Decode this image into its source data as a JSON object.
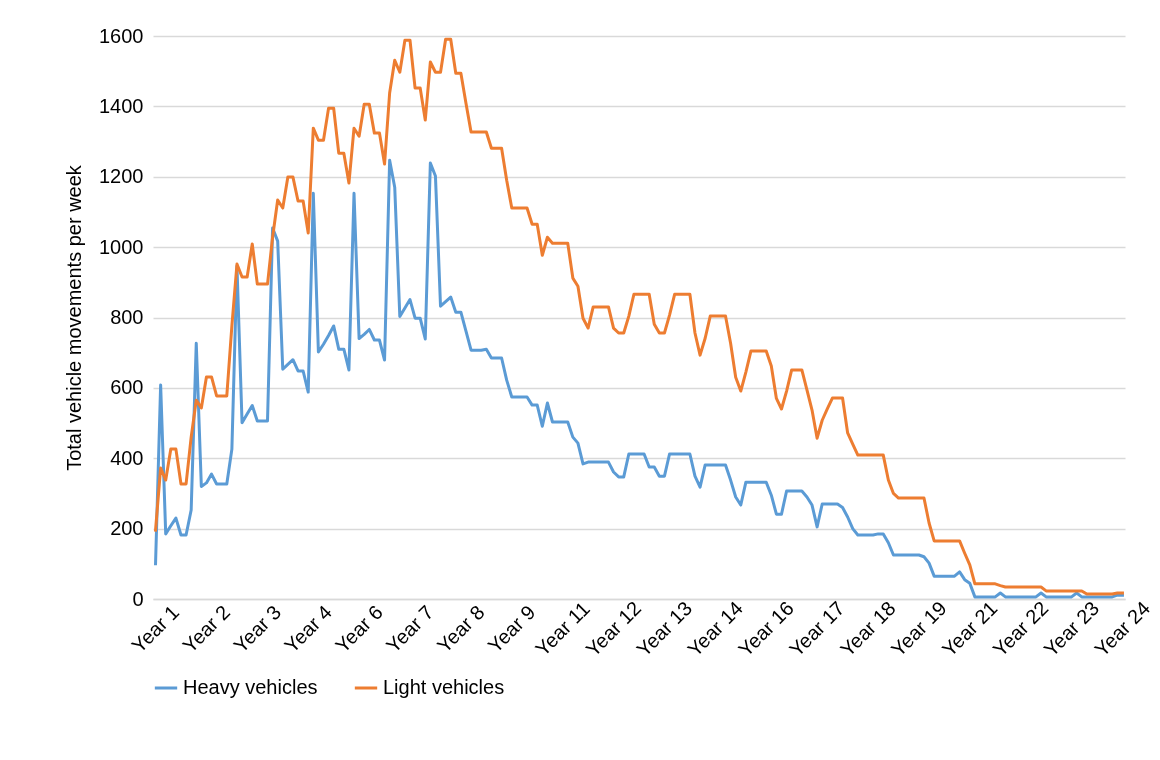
{
  "chart_data": {
    "type": "line",
    "ylabel": "Total vehicle movements per week",
    "categories": [
      "Year 1",
      null,
      null,
      null,
      null,
      null,
      null,
      null,
      null,
      null,
      "Year 2",
      null,
      null,
      null,
      null,
      null,
      null,
      null,
      null,
      null,
      "Year 3",
      null,
      null,
      null,
      null,
      null,
      null,
      null,
      null,
      null,
      "Year 4",
      null,
      null,
      null,
      null,
      null,
      null,
      null,
      null,
      null,
      "Year 6",
      null,
      null,
      null,
      null,
      null,
      null,
      null,
      null,
      null,
      "Year 7",
      null,
      null,
      null,
      null,
      null,
      null,
      null,
      null,
      null,
      "Year 8",
      null,
      null,
      null,
      null,
      null,
      null,
      null,
      null,
      null,
      "Year 9",
      null,
      null,
      null,
      null,
      null,
      null,
      null,
      null,
      null,
      "Year 11",
      null,
      null,
      null,
      null,
      null,
      null,
      null,
      null,
      null,
      "Year 12",
      null,
      null,
      null,
      null,
      null,
      null,
      null,
      null,
      null,
      "Year 13",
      null,
      null,
      null,
      null,
      null,
      null,
      null,
      null,
      null,
      "Year 14",
      null,
      null,
      null,
      null,
      null,
      null,
      null,
      null,
      null,
      "Year 16",
      null,
      null,
      null,
      null,
      null,
      null,
      null,
      null,
      null,
      "Year 17",
      null,
      null,
      null,
      null,
      null,
      null,
      null,
      null,
      null,
      "Year 18",
      null,
      null,
      null,
      null,
      null,
      null,
      null,
      null,
      null,
      "Year 19",
      null,
      null,
      null,
      null,
      null,
      null,
      null,
      null,
      null,
      "Year 21",
      null,
      null,
      null,
      null,
      null,
      null,
      null,
      null,
      null,
      "Year 22",
      null,
      null,
      null,
      null,
      null,
      null,
      null,
      null,
      null,
      "Year 23",
      null,
      null,
      null,
      null,
      null,
      null,
      null,
      null,
      null,
      "Year 24"
    ],
    "ylim": [
      0,
      1600
    ],
    "yticks": [
      0,
      200,
      400,
      600,
      800,
      1000,
      1200,
      1400,
      1600
    ],
    "grid": "y",
    "legend": "bottom",
    "series": [
      {
        "name": "Heavy vehicles",
        "color": "#5b9bd5",
        "values": [
          100,
          608,
          185,
          208,
          230,
          182,
          182,
          253,
          727,
          320,
          330,
          355,
          327,
          327,
          327,
          426,
          946,
          501,
          526,
          550,
          506,
          506,
          506,
          1054,
          1017,
          653,
          667,
          680,
          648,
          648,
          588,
          1153,
          702,
          724,
          749,
          776,
          710,
          710,
          651,
          1153,
          740,
          752,
          766,
          736,
          736,
          679,
          1247,
          1170,
          803,
          827,
          851,
          798,
          798,
          739,
          1239,
          1202,
          832,
          845,
          858,
          815,
          815,
          761,
          707,
          707,
          707,
          710,
          685,
          685,
          685,
          622,
          574,
          574,
          574,
          574,
          551,
          551,
          491,
          557,
          503,
          503,
          503,
          503,
          460,
          443,
          384,
          389,
          389,
          389,
          389,
          389,
          361,
          347,
          347,
          412,
          412,
          412,
          412,
          375,
          375,
          349,
          349,
          412,
          412,
          412,
          412,
          412,
          349,
          318,
          381,
          381,
          381,
          381,
          381,
          338,
          290,
          267,
          332,
          332,
          332,
          332,
          332,
          295,
          241,
          241,
          307,
          307,
          307,
          307,
          290,
          267,
          205,
          270,
          270,
          270,
          270,
          260,
          233,
          200,
          182,
          182,
          182,
          182,
          185,
          185,
          160,
          125,
          125,
          125,
          125,
          125,
          125,
          120,
          102,
          65,
          65,
          65,
          65,
          65,
          77,
          55,
          45,
          6,
          6,
          6,
          6,
          6,
          17,
          6,
          6,
          6,
          6,
          6,
          6,
          6,
          17,
          6,
          6,
          6,
          6,
          6,
          6,
          17,
          6,
          6,
          6,
          6,
          6,
          6,
          6,
          11,
          11
        ]
      },
      {
        "name": "Light vehicles",
        "color": "#ed7d31",
        "values": [
          196,
          372,
          338,
          426,
          426,
          327,
          327,
          460,
          565,
          543,
          631,
          631,
          577,
          577,
          577,
          776,
          952,
          915,
          915,
          1009,
          895,
          895,
          895,
          1028,
          1134,
          1111,
          1199,
          1199,
          1131,
          1131,
          1040,
          1338,
          1304,
          1304,
          1395,
          1395,
          1267,
          1267,
          1182,
          1338,
          1315,
          1406,
          1406,
          1324,
          1324,
          1236,
          1438,
          1531,
          1497,
          1588,
          1588,
          1452,
          1452,
          1361,
          1526,
          1497,
          1497,
          1591,
          1591,
          1494,
          1494,
          1409,
          1327,
          1327,
          1327,
          1327,
          1281,
          1281,
          1281,
          1190,
          1111,
          1111,
          1111,
          1111,
          1065,
          1065,
          977,
          1028,
          1011,
          1011,
          1011,
          1011,
          912,
          889,
          798,
          770,
          830,
          830,
          830,
          830,
          770,
          756,
          756,
          804,
          866,
          866,
          866,
          866,
          781,
          756,
          756,
          807,
          866,
          866,
          866,
          866,
          756,
          693,
          741,
          804,
          804,
          804,
          804,
          727,
          630,
          591,
          645,
          705,
          705,
          705,
          705,
          662,
          570,
          540,
          591,
          651,
          651,
          651,
          594,
          537,
          457,
          508,
          540,
          571,
          571,
          571,
          472,
          440,
          409,
          409,
          409,
          409,
          409,
          409,
          338,
          300,
          287,
          287,
          287,
          287,
          287,
          287,
          216,
          165,
          165,
          165,
          165,
          165,
          165,
          130,
          97,
          43,
          43,
          43,
          43,
          43,
          38,
          34,
          34,
          34,
          34,
          34,
          34,
          34,
          34,
          23,
          23,
          23,
          23,
          23,
          23,
          23,
          23,
          14,
          14,
          14,
          14,
          14,
          14,
          17,
          17
        ]
      }
    ]
  }
}
